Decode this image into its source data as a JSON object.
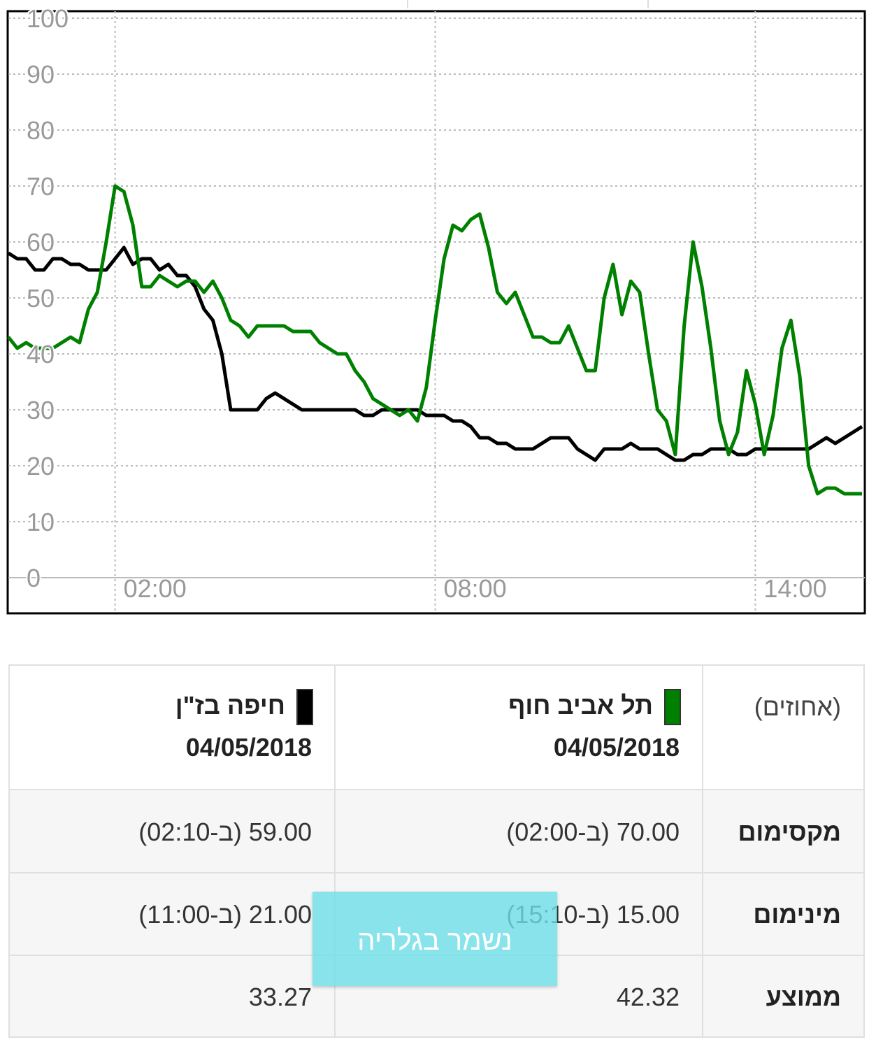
{
  "chart_data": {
    "type": "line",
    "x": [
      0,
      10,
      20,
      30,
      40,
      50,
      60,
      70,
      80,
      90,
      100,
      110,
      120,
      130,
      140,
      150,
      160,
      170,
      180,
      190,
      200,
      210,
      220,
      230,
      240,
      250,
      260,
      270,
      280,
      290,
      300,
      310,
      320,
      330,
      340,
      350,
      360,
      370,
      380,
      390,
      400,
      410,
      420,
      430,
      440,
      450,
      460,
      470,
      480,
      490,
      500,
      510,
      520,
      530,
      540,
      550,
      560,
      570,
      580,
      590,
      600,
      610,
      620,
      630,
      640,
      650,
      660,
      670,
      680,
      690,
      700,
      710,
      720,
      730,
      740,
      750,
      760,
      770,
      780,
      790,
      800,
      810,
      820,
      830,
      840,
      850,
      860,
      870,
      880,
      890,
      900,
      910,
      920,
      930,
      940,
      950,
      960
    ],
    "xlim": [
      0,
      960
    ],
    "xticks": [
      {
        "value": 120,
        "label": "02:00"
      },
      {
        "value": 480,
        "label": "08:00"
      },
      {
        "value": 840,
        "label": "14:00"
      }
    ],
    "ylim": [
      0,
      100
    ],
    "yticks": [
      0,
      10,
      20,
      30,
      40,
      50,
      60,
      70,
      80,
      90,
      100
    ],
    "grid": true,
    "series": [
      {
        "name": "תל אביב חוף",
        "color": "#008000",
        "values": [
          43,
          41,
          42,
          41,
          41,
          41,
          42,
          43,
          42,
          48,
          51,
          60,
          70,
          69,
          63,
          52,
          52,
          54,
          53,
          52,
          53,
          53,
          51,
          53,
          50,
          46,
          45,
          43,
          45,
          45,
          45,
          45,
          44,
          44,
          44,
          42,
          41,
          40,
          40,
          37,
          35,
          32,
          31,
          30,
          29,
          30,
          28,
          34,
          46,
          57,
          63,
          62,
          64,
          65,
          59,
          51,
          49,
          51,
          47,
          43,
          43,
          42,
          42,
          45,
          41,
          37,
          37,
          50,
          56,
          47,
          53,
          51,
          40,
          30,
          28,
          22,
          45,
          60,
          52,
          41,
          28,
          22,
          26,
          37,
          31,
          22,
          29,
          41,
          46,
          36,
          20,
          15,
          16,
          16,
          15,
          15,
          15
        ]
      },
      {
        "name": "חיפה בז\"ן",
        "color": "#000000",
        "values": [
          58,
          57,
          57,
          55,
          55,
          57,
          57,
          56,
          56,
          55,
          55,
          55,
          57,
          59,
          56,
          57,
          57,
          55,
          56,
          54,
          54,
          52,
          48,
          46,
          40,
          30,
          30,
          30,
          30,
          32,
          33,
          32,
          31,
          30,
          30,
          30,
          30,
          30,
          30,
          30,
          29,
          29,
          30,
          30,
          30,
          30,
          30,
          29,
          29,
          29,
          28,
          28,
          27,
          25,
          25,
          24,
          24,
          23,
          23,
          23,
          24,
          25,
          25,
          25,
          23,
          22,
          21,
          23,
          23,
          23,
          24,
          23,
          23,
          23,
          22,
          21,
          21,
          22,
          22,
          23,
          23,
          23,
          22,
          22,
          23,
          23,
          23,
          23,
          23,
          23,
          23,
          24,
          25,
          24,
          25,
          26,
          27
        ]
      }
    ]
  },
  "table": {
    "unit": "(אחוזים)",
    "date": "04/05/2018",
    "rows": [
      {
        "label": "מקסימום",
        "cells": [
          "70.00 (ב-02:00)",
          "59.00 (ב-02:10)"
        ]
      },
      {
        "label": "מינימום",
        "cells": [
          "15.00 (ב-15:10)",
          "21.00 (ב-11:00)"
        ]
      },
      {
        "label": "ממוצע",
        "cells": [
          "42.32",
          "33.27"
        ]
      }
    ]
  },
  "toast": "נשמר בגלריה"
}
